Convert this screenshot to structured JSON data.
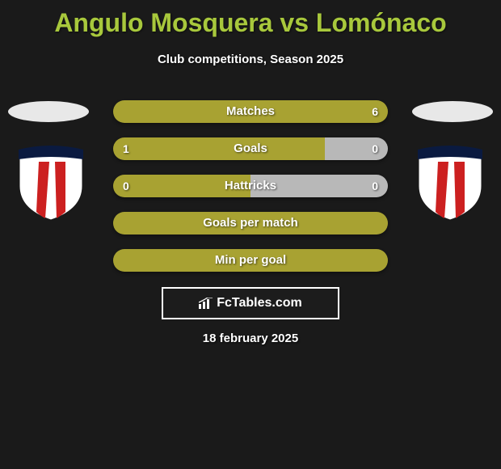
{
  "title": "Angulo Mosquera vs Lomónaco",
  "subtitle": "Club competitions, Season 2025",
  "date_text": "18 february 2025",
  "watermark": "FcTables.com",
  "colors": {
    "title_color": "#a8c83c",
    "bar_primary": "#a8a232",
    "bar_secondary": "#b8b8b8",
    "background": "#1a1a1a",
    "text": "#ffffff",
    "oval": "#e8e8e8"
  },
  "shield": {
    "body_fill": "#ffffff",
    "stripe_fill": "#cc2020",
    "border": "#1a1a1a",
    "top_band": "#0a1a40"
  },
  "bars": [
    {
      "label": "Matches",
      "left_value": "",
      "right_value": "6",
      "left_pct": 0,
      "right_pct": 100,
      "left_color": "#a8a232",
      "right_color": "#a8a232",
      "show_left_val": false,
      "show_right_val": true
    },
    {
      "label": "Goals",
      "left_value": "1",
      "right_value": "0",
      "left_pct": 77,
      "right_pct": 23,
      "left_color": "#a8a232",
      "right_color": "#b8b8b8",
      "show_left_val": true,
      "show_right_val": true
    },
    {
      "label": "Hattricks",
      "left_value": "0",
      "right_value": "0",
      "left_pct": 50,
      "right_pct": 50,
      "left_color": "#a8a232",
      "right_color": "#b8b8b8",
      "show_left_val": true,
      "show_right_val": true
    },
    {
      "label": "Goals per match",
      "left_value": "",
      "right_value": "",
      "left_pct": 100,
      "right_pct": 0,
      "left_color": "#a8a232",
      "right_color": "#a8a232",
      "show_left_val": false,
      "show_right_val": false
    },
    {
      "label": "Min per goal",
      "left_value": "",
      "right_value": "",
      "left_pct": 100,
      "right_pct": 0,
      "left_color": "#a8a232",
      "right_color": "#a8a232",
      "show_left_val": false,
      "show_right_val": false
    }
  ]
}
